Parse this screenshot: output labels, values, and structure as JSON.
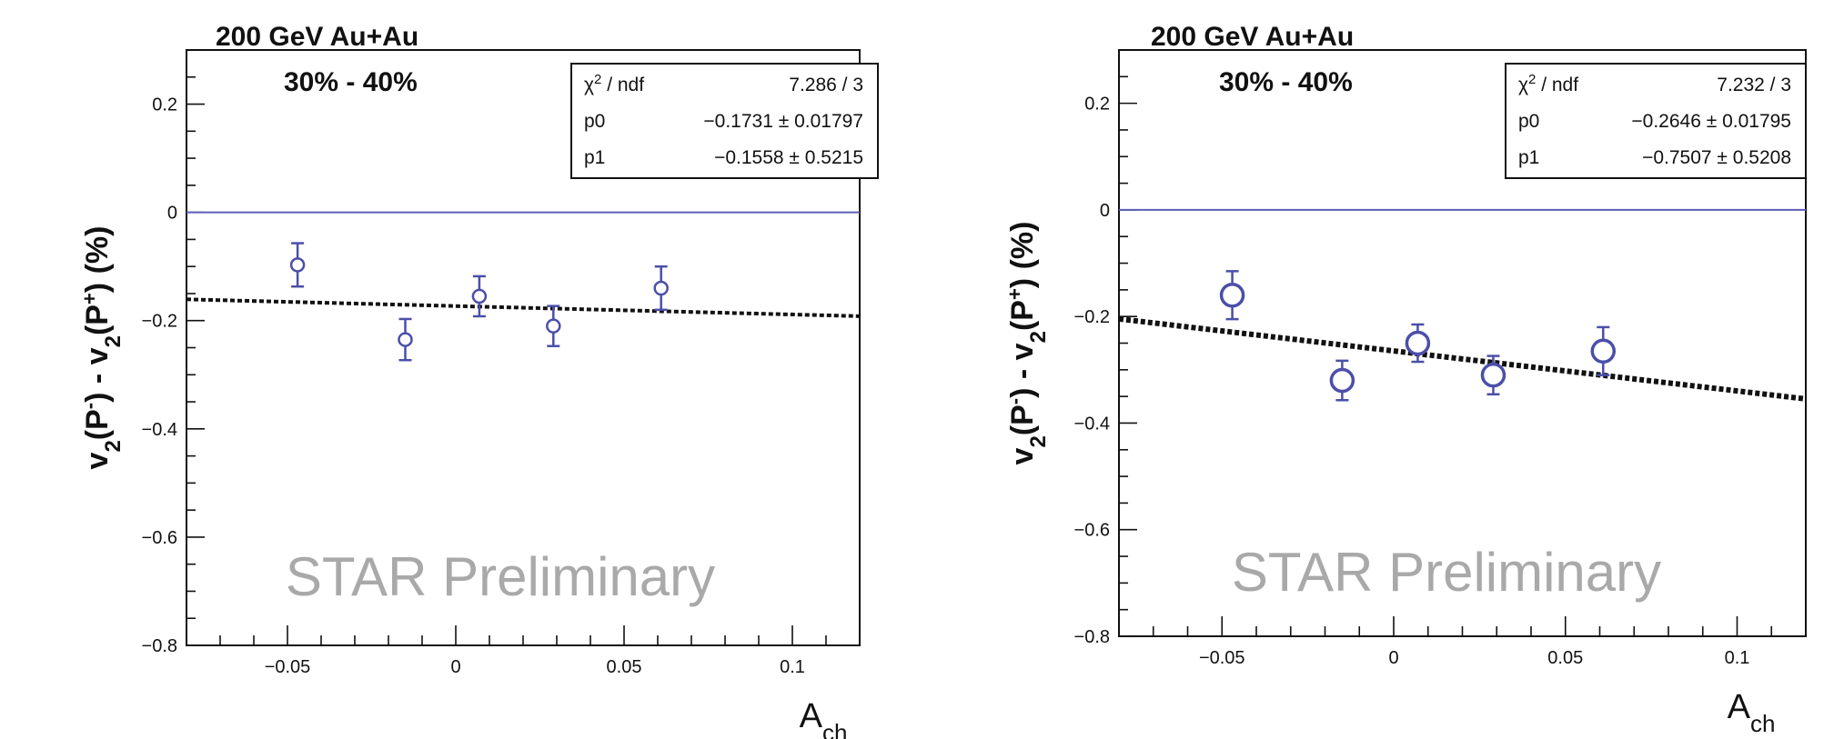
{
  "chart_data": [
    {
      "type": "scatter",
      "header_line1": "200 GeV Au+Au",
      "header_line2": "30% - 40%",
      "watermark": "STAR Preliminary",
      "xlabel_main": "A",
      "xlabel_sub": "ch",
      "ylabel": {
        "a": "v",
        "s1": "2",
        "b": "(P",
        "sup1": "-",
        "c": ") - v",
        "s2": "2",
        "d": "(P",
        "sup2": "+",
        "e": ") (%)"
      },
      "xlim": [
        -0.08,
        0.12
      ],
      "ylim": [
        -0.8,
        0.3
      ],
      "xticks": [
        -0.05,
        0,
        0.05,
        0.1
      ],
      "xtick_labels": [
        "−0.05",
        "0",
        "0.05",
        "0.1"
      ],
      "yticks": [
        0.2,
        0,
        -0.2,
        -0.4,
        -0.6,
        -0.8
      ],
      "ytick_labels": [
        "0.2",
        "0",
        "−0.2",
        "−0.4",
        "−0.6",
        "−0.8"
      ],
      "points": [
        {
          "x": -0.047,
          "y": -0.097,
          "err": 0.04
        },
        {
          "x": -0.015,
          "y": -0.235,
          "err": 0.038
        },
        {
          "x": 0.007,
          "y": -0.155,
          "err": 0.037
        },
        {
          "x": 0.029,
          "y": -0.21,
          "err": 0.037
        },
        {
          "x": 0.061,
          "y": -0.14,
          "err": 0.04
        }
      ],
      "marker_size": "small",
      "reference_line_y": 0,
      "fit": {
        "p0": -0.1731,
        "p1": -0.1558,
        "stats": [
          {
            "label_main": "χ",
            "label_sup": "2",
            "label_rest": " / ndf",
            "value": "7.286 / 3"
          },
          {
            "label_main": "p0",
            "label_sup": "",
            "label_rest": "",
            "value": "−0.1731 ± 0.01797"
          },
          {
            "label_main": "p1",
            "label_sup": "",
            "label_rest": "",
            "value": "−0.1558 ± 0.5215"
          }
        ]
      },
      "colors": {
        "points": "#4b4fa8",
        "reference": "#5b5fb8",
        "fit": "#111111"
      }
    },
    {
      "type": "scatter",
      "header_line1": "200 GeV Au+Au",
      "header_line2": "30% - 40%",
      "watermark": "STAR Preliminary",
      "xlabel_main": "A",
      "xlabel_sub": "ch",
      "ylabel": {
        "a": "v",
        "s1": "2",
        "b": "(P",
        "sup1": "-",
        "c": ") - v",
        "s2": "2",
        "d": "(P",
        "sup2": "+",
        "e": ") (%)"
      },
      "xlim": [
        -0.08,
        0.12
      ],
      "ylim": [
        -0.8,
        0.3
      ],
      "xticks": [
        -0.05,
        0,
        0.05,
        0.1
      ],
      "xtick_labels": [
        "−0.05",
        "0",
        "0.05",
        "0.1"
      ],
      "yticks": [
        0.2,
        0,
        -0.2,
        -0.4,
        -0.6,
        -0.8
      ],
      "ytick_labels": [
        "0.2",
        "0",
        "−0.2",
        "−0.4",
        "−0.6",
        "−0.8"
      ],
      "points": [
        {
          "x": -0.047,
          "y": -0.16,
          "err": 0.045
        },
        {
          "x": -0.015,
          "y": -0.32,
          "err": 0.037
        },
        {
          "x": 0.007,
          "y": -0.25,
          "err": 0.035
        },
        {
          "x": 0.029,
          "y": -0.31,
          "err": 0.036
        },
        {
          "x": 0.061,
          "y": -0.265,
          "err": 0.045
        }
      ],
      "marker_size": "large",
      "reference_line_y": 0,
      "fit": {
        "p0": -0.2646,
        "p1": -0.7507,
        "stats": [
          {
            "label_main": "χ",
            "label_sup": "2",
            "label_rest": " / ndf",
            "value": "7.232 / 3"
          },
          {
            "label_main": "p0",
            "label_sup": "",
            "label_rest": "",
            "value": "−0.2646 ± 0.01795"
          },
          {
            "label_main": "p1",
            "label_sup": "",
            "label_rest": "",
            "value": "−0.7507 ± 0.5208"
          }
        ]
      },
      "colors": {
        "points": "#4b4fa8",
        "reference": "#5b5fb8",
        "fit": "#111111"
      }
    }
  ]
}
